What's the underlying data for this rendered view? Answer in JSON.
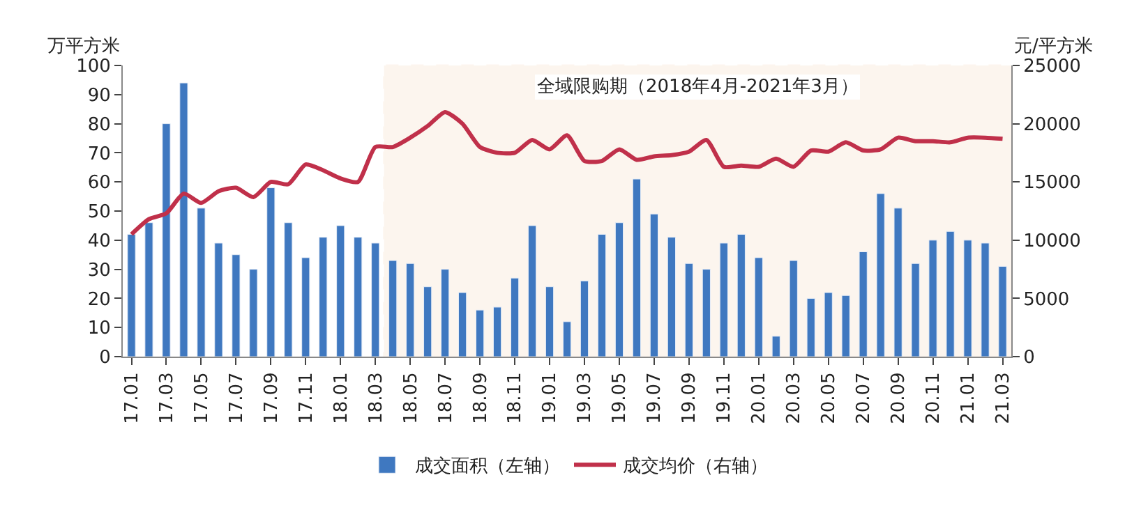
{
  "chart_data": {
    "type": "bar",
    "ylabel": "万平方米",
    "y2label": "元/平方米",
    "categories": [
      "17.01",
      null,
      "17.03",
      null,
      "17.05",
      null,
      "17.07",
      null,
      "17.09",
      null,
      "17.11",
      null,
      "18.01",
      null,
      "18.03",
      null,
      "18.05",
      null,
      "18.07",
      null,
      "18.09",
      null,
      "18.11",
      null,
      "19.01",
      null,
      "19.03",
      null,
      "19.05",
      null,
      "19.07",
      null,
      "19.09",
      null,
      "19.11",
      null,
      "20.01",
      null,
      "20.03",
      null,
      "20.05",
      null,
      "20.07",
      null,
      "20.09",
      null,
      "20.11",
      null,
      "21.01",
      null,
      "21.03"
    ],
    "series": [
      {
        "name": "成交面积（左轴）",
        "color": "#3f78c0",
        "values": [
          42,
          46,
          80,
          94,
          51,
          39,
          35,
          30,
          58,
          46,
          34,
          41,
          45,
          41,
          39,
          33,
          32,
          24,
          30,
          22,
          16,
          17,
          27,
          45,
          24,
          12,
          26,
          42,
          46,
          61,
          49,
          41,
          32,
          30,
          39,
          42,
          34,
          7,
          33,
          20,
          22,
          21,
          36,
          56,
          51,
          32,
          40,
          43,
          40,
          39,
          31
        ]
      },
      {
        "name": "成交均价（右轴）",
        "type": "line",
        "axis": "y2",
        "color": "#c0304a",
        "values": [
          10500,
          11800,
          12300,
          14000,
          13200,
          14200,
          14500,
          13700,
          15000,
          14800,
          16500,
          16000,
          15300,
          15000,
          18000,
          18000,
          18800,
          19800,
          21000,
          20000,
          18000,
          17500,
          17500,
          18600,
          17800,
          19000,
          16800,
          16800,
          17800,
          16900,
          17200,
          17300,
          17600,
          18600,
          16300,
          16400,
          16300,
          17000,
          16300,
          17700,
          17600,
          18400,
          17700,
          17800,
          18800,
          18500,
          18500,
          18400,
          18800,
          18800,
          18700
        ]
      }
    ],
    "ylim": [
      0,
      100
    ],
    "yticks": [
      0,
      10,
      20,
      30,
      40,
      50,
      60,
      70,
      80,
      90,
      100
    ],
    "y2lim": [
      0,
      25000
    ],
    "y2ticks": [
      0,
      5000,
      10000,
      15000,
      20000,
      25000
    ],
    "bands": [
      {
        "axis": "x",
        "from": "18.03",
        "to": "21.03",
        "label": "全域限购期（2018年4月-2021年3月）",
        "color": "#e08a30"
      }
    ],
    "grid": false,
    "legend": "bottom",
    "marker": "none",
    "line_style": "solid"
  }
}
